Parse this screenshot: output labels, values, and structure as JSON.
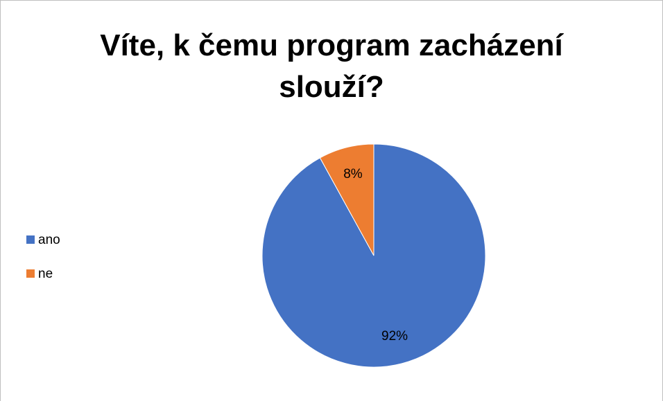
{
  "chart_data": {
    "type": "pie",
    "title": "Víte, k čemu program zacházení slouží?",
    "categories": [
      "ano",
      "ne"
    ],
    "values": [
      92,
      8
    ],
    "value_labels": [
      "92%",
      "8%"
    ],
    "colors": [
      "#4472c4",
      "#ed7d31"
    ],
    "legend": "left"
  }
}
